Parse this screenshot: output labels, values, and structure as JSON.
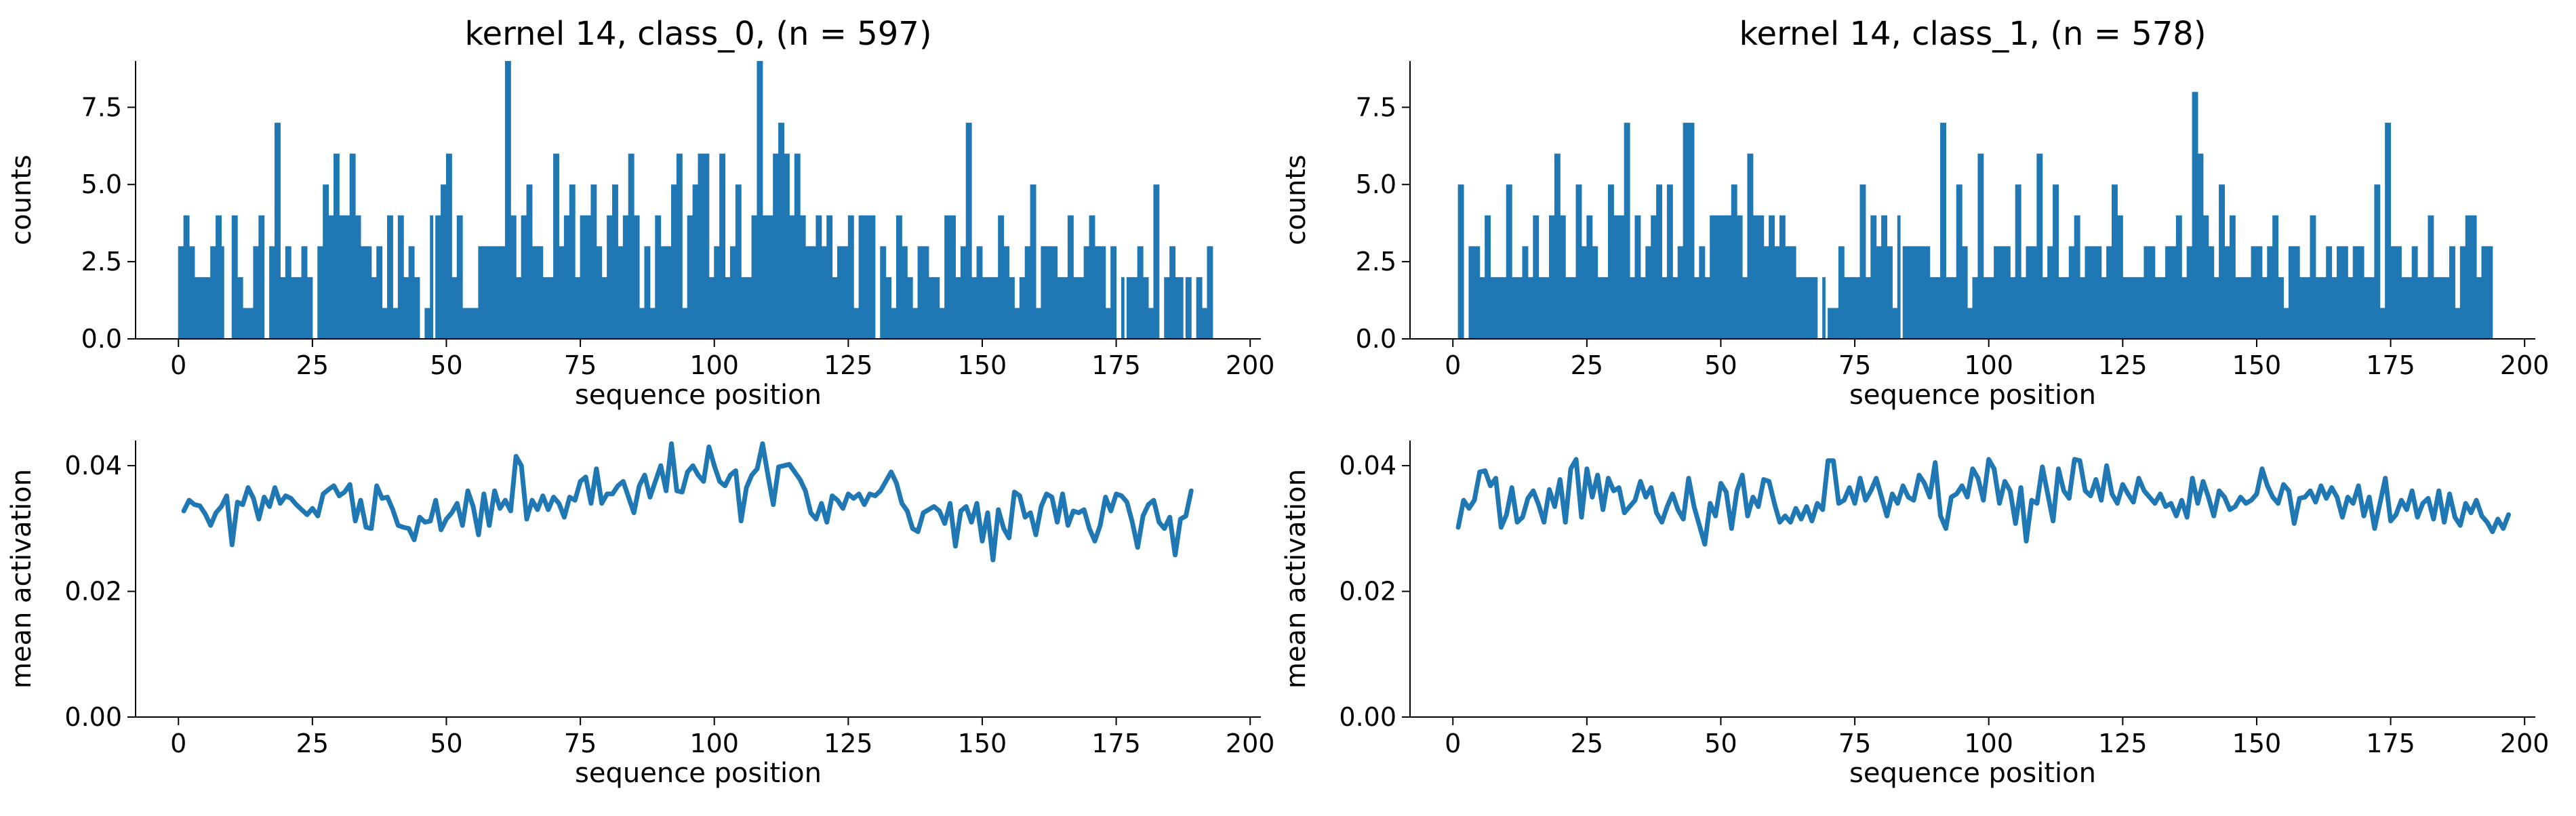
{
  "chart_data": [
    {
      "type": "bar",
      "title": "kernel 14, class_0, (n = 597)",
      "xlabel": "sequence position",
      "ylabel": "counts",
      "xlim": [
        -8,
        202
      ],
      "ylim": [
        0,
        9
      ],
      "xticks": [
        0,
        25,
        50,
        75,
        100,
        125,
        150,
        175,
        200
      ],
      "yticks": [
        0.0,
        2.5,
        5.0,
        7.5
      ],
      "ytick_format": "fixed1",
      "grid": false,
      "color": "#1f77b4",
      "x_start": 0,
      "values": [
        3,
        4,
        3,
        2,
        2,
        2,
        3,
        4,
        3,
        0,
        4,
        2,
        1,
        1,
        3,
        4,
        0,
        3,
        7,
        2,
        3,
        2,
        2,
        3,
        2,
        0,
        3,
        5,
        4,
        6,
        4,
        4,
        6,
        4,
        3,
        3,
        2,
        3,
        1,
        4,
        1,
        4,
        2,
        3,
        2,
        0,
        1,
        4,
        4,
        5,
        6,
        2,
        4,
        1,
        1,
        1,
        3,
        3,
        3,
        3,
        3,
        9,
        4,
        2,
        4,
        5,
        3,
        3,
        2,
        2,
        6,
        3,
        4,
        5,
        2,
        4,
        4,
        5,
        3,
        2,
        4,
        5,
        3,
        4,
        6,
        4,
        1,
        3,
        1,
        4,
        3,
        3,
        5,
        6,
        1,
        4,
        5,
        6,
        6,
        2,
        3,
        6,
        2,
        3,
        5,
        2,
        2,
        4,
        9,
        4,
        4,
        6,
        7,
        6,
        4,
        6,
        4,
        3,
        3,
        4,
        3,
        4,
        2,
        3,
        3,
        4,
        1,
        4,
        4,
        4,
        0,
        3,
        2,
        1,
        4,
        3,
        2,
        1,
        3,
        3,
        2,
        2,
        1,
        4,
        4,
        2,
        3,
        7,
        2,
        3,
        2,
        2,
        2,
        4,
        3,
        2,
        1,
        2,
        3,
        5,
        1,
        3,
        3,
        3,
        2,
        2,
        4,
        2,
        2,
        3,
        4,
        3,
        3,
        1,
        3,
        0,
        2,
        2,
        2,
        3,
        2,
        1,
        5,
        0,
        2,
        3,
        2,
        2,
        2,
        0,
        2,
        1,
        3
      ],
      "bar_gaps": [
        8,
        16,
        25,
        47,
        130,
        176,
        187
      ]
    },
    {
      "type": "bar",
      "title": "kernel 14, class_1, (n = 578)",
      "xlabel": "sequence position",
      "ylabel": "counts",
      "xlim": [
        -8,
        202
      ],
      "ylim": [
        0,
        9
      ],
      "xticks": [
        0,
        25,
        50,
        75,
        100,
        125,
        150,
        175,
        200
      ],
      "yticks": [
        0.0,
        2.5,
        5.0,
        7.5
      ],
      "ytick_format": "fixed1",
      "grid": false,
      "color": "#1f77b4",
      "x_start": 0,
      "values": [
        0,
        5,
        0,
        3,
        3,
        2,
        4,
        2,
        2,
        2,
        5,
        2,
        2,
        3,
        2,
        4,
        2,
        2,
        4,
        6,
        4,
        2,
        2,
        5,
        3,
        4,
        3,
        2,
        2,
        5,
        4,
        4,
        7,
        2,
        4,
        2,
        3,
        4,
        5,
        2,
        5,
        2,
        3,
        7,
        7,
        2,
        3,
        2,
        4,
        4,
        4,
        4,
        5,
        4,
        2,
        6,
        4,
        4,
        3,
        4,
        3,
        4,
        3,
        3,
        2,
        2,
        2,
        2,
        0,
        2,
        1,
        1,
        3,
        2,
        2,
        2,
        5,
        2,
        4,
        3,
        4,
        3,
        1,
        4,
        3,
        3,
        3,
        3,
        3,
        2,
        2,
        7,
        2,
        2,
        5,
        3,
        1,
        2,
        6,
        2,
        2,
        3,
        3,
        3,
        2,
        5,
        2,
        3,
        3,
        6,
        2,
        3,
        5,
        2,
        2,
        3,
        4,
        2,
        3,
        3,
        3,
        2,
        3,
        5,
        4,
        2,
        2,
        2,
        2,
        3,
        3,
        2,
        2,
        3,
        3,
        4,
        2,
        3,
        8,
        6,
        4,
        3,
        2,
        5,
        3,
        4,
        2,
        2,
        2,
        3,
        3,
        2,
        3,
        4,
        2,
        1,
        3,
        3,
        2,
        2,
        4,
        2,
        2,
        3,
        2,
        3,
        3,
        2,
        3,
        3,
        2,
        2,
        5,
        1,
        7,
        3,
        3,
        2,
        2,
        3,
        2,
        2,
        4,
        2,
        2,
        2,
        3,
        1,
        3,
        4,
        4,
        2,
        3,
        3
      ],
      "bar_gaps": [
        2,
        69,
        83
      ]
    },
    {
      "type": "line",
      "title": "",
      "xlabel": "sequence position",
      "ylabel": "mean activation",
      "xlim": [
        -8,
        202
      ],
      "ylim": [
        0,
        0.044
      ],
      "xticks": [
        0,
        25,
        50,
        75,
        100,
        125,
        150,
        175,
        200
      ],
      "yticks": [
        0.0,
        0.02,
        0.04
      ],
      "ytick_format": "fixed2",
      "grid": false,
      "color": "#1f77b4",
      "x_start": 1,
      "values": [
        0.0328,
        0.0345,
        0.0338,
        0.0336,
        0.0323,
        0.0305,
        0.0325,
        0.0335,
        0.0352,
        0.0274,
        0.0342,
        0.0338,
        0.0365,
        0.0348,
        0.0315,
        0.035,
        0.0335,
        0.0365,
        0.034,
        0.0352,
        0.0348,
        0.0338,
        0.033,
        0.0322,
        0.0332,
        0.032,
        0.0355,
        0.0362,
        0.0368,
        0.0352,
        0.0358,
        0.037,
        0.0312,
        0.0345,
        0.0302,
        0.03,
        0.0368,
        0.0348,
        0.035,
        0.033,
        0.0305,
        0.0302,
        0.03,
        0.0282,
        0.0318,
        0.031,
        0.0312,
        0.0345,
        0.0298,
        0.0315,
        0.0325,
        0.034,
        0.0305,
        0.036,
        0.0335,
        0.029,
        0.0355,
        0.0305,
        0.036,
        0.0332,
        0.0345,
        0.0328,
        0.0415,
        0.04,
        0.0315,
        0.0345,
        0.033,
        0.0352,
        0.033,
        0.035,
        0.034,
        0.0318,
        0.035,
        0.0345,
        0.0375,
        0.0382,
        0.034,
        0.0395,
        0.034,
        0.0355,
        0.0355,
        0.0368,
        0.0375,
        0.035,
        0.0325,
        0.0368,
        0.0385,
        0.035,
        0.0375,
        0.04,
        0.036,
        0.0435,
        0.036,
        0.0358,
        0.039,
        0.04,
        0.0385,
        0.0375,
        0.043,
        0.04,
        0.0375,
        0.0368,
        0.0385,
        0.0392,
        0.0312,
        0.0365,
        0.0385,
        0.0395,
        0.0435,
        0.0385,
        0.0338,
        0.0398,
        0.04,
        0.0402,
        0.039,
        0.0378,
        0.036,
        0.0325,
        0.0315,
        0.034,
        0.031,
        0.0352,
        0.0345,
        0.0332,
        0.0355,
        0.0348,
        0.0355,
        0.0338,
        0.0355,
        0.0352,
        0.036,
        0.0375,
        0.039,
        0.0372,
        0.034,
        0.0328,
        0.03,
        0.0295,
        0.0325,
        0.033,
        0.0335,
        0.0328,
        0.0308,
        0.034,
        0.0272,
        0.0328,
        0.0335,
        0.031,
        0.034,
        0.028,
        0.0325,
        0.025,
        0.033,
        0.03,
        0.0285,
        0.0358,
        0.0352,
        0.0318,
        0.0325,
        0.029,
        0.0335,
        0.0355,
        0.035,
        0.031,
        0.0355,
        0.0305,
        0.0328,
        0.0325,
        0.033,
        0.03,
        0.028,
        0.0305,
        0.035,
        0.0328,
        0.0355,
        0.0352,
        0.0342,
        0.031,
        0.027,
        0.032,
        0.0338,
        0.0345,
        0.031,
        0.03,
        0.0318,
        0.0258,
        0.0315,
        0.032,
        0.036
      ],
      "line_width": 7
    },
    {
      "type": "line",
      "title": "",
      "xlabel": "sequence position",
      "ylabel": "mean activation",
      "xlim": [
        -8,
        202
      ],
      "ylim": [
        0,
        0.044
      ],
      "xticks": [
        0,
        25,
        50,
        75,
        100,
        125,
        150,
        175,
        200
      ],
      "yticks": [
        0.0,
        0.02,
        0.04
      ],
      "ytick_format": "fixed2",
      "grid": false,
      "color": "#1f77b4",
      "x_start": 1,
      "values": [
        0.0302,
        0.0345,
        0.0332,
        0.0345,
        0.039,
        0.0392,
        0.0368,
        0.038,
        0.0302,
        0.0322,
        0.0365,
        0.031,
        0.0318,
        0.0348,
        0.036,
        0.0338,
        0.031,
        0.0362,
        0.0335,
        0.0378,
        0.031,
        0.0395,
        0.041,
        0.0318,
        0.0395,
        0.035,
        0.0385,
        0.033,
        0.038,
        0.036,
        0.0365,
        0.0325,
        0.0335,
        0.0345,
        0.0375,
        0.035,
        0.0365,
        0.0325,
        0.031,
        0.0335,
        0.0355,
        0.033,
        0.0315,
        0.038,
        0.0335,
        0.0305,
        0.0275,
        0.034,
        0.032,
        0.0372,
        0.0358,
        0.03,
        0.036,
        0.0385,
        0.032,
        0.035,
        0.0335,
        0.0378,
        0.0375,
        0.034,
        0.031,
        0.032,
        0.031,
        0.0332,
        0.0315,
        0.0335,
        0.0312,
        0.034,
        0.033,
        0.0408,
        0.0408,
        0.034,
        0.0345,
        0.0365,
        0.034,
        0.038,
        0.0345,
        0.036,
        0.038,
        0.035,
        0.032,
        0.0355,
        0.034,
        0.0368,
        0.035,
        0.0345,
        0.0385,
        0.0372,
        0.035,
        0.0405,
        0.032,
        0.03,
        0.035,
        0.0355,
        0.0368,
        0.035,
        0.0395,
        0.038,
        0.0345,
        0.041,
        0.0395,
        0.034,
        0.0375,
        0.036,
        0.0308,
        0.0365,
        0.028,
        0.0345,
        0.034,
        0.0398,
        0.0355,
        0.0312,
        0.0395,
        0.036,
        0.0348,
        0.041,
        0.0408,
        0.036,
        0.0352,
        0.0378,
        0.0345,
        0.04,
        0.0355,
        0.034,
        0.037,
        0.0355,
        0.0342,
        0.038,
        0.036,
        0.035,
        0.034,
        0.0355,
        0.0335,
        0.034,
        0.032,
        0.0345,
        0.0318,
        0.038,
        0.034,
        0.0375,
        0.035,
        0.032,
        0.036,
        0.035,
        0.033,
        0.0335,
        0.035,
        0.034,
        0.0345,
        0.0355,
        0.0395,
        0.0368,
        0.035,
        0.034,
        0.037,
        0.036,
        0.0308,
        0.0348,
        0.035,
        0.036,
        0.0342,
        0.0368,
        0.0348,
        0.0365,
        0.035,
        0.0318,
        0.035,
        0.034,
        0.0368,
        0.032,
        0.035,
        0.03,
        0.034,
        0.038,
        0.0312,
        0.0322,
        0.0345,
        0.033,
        0.036,
        0.0318,
        0.034,
        0.0348,
        0.0315,
        0.036,
        0.031,
        0.0355,
        0.0318,
        0.0305,
        0.034,
        0.0325,
        0.0345,
        0.032,
        0.031,
        0.0295,
        0.0315,
        0.03,
        0.0322
      ],
      "line_width": 7
    }
  ]
}
